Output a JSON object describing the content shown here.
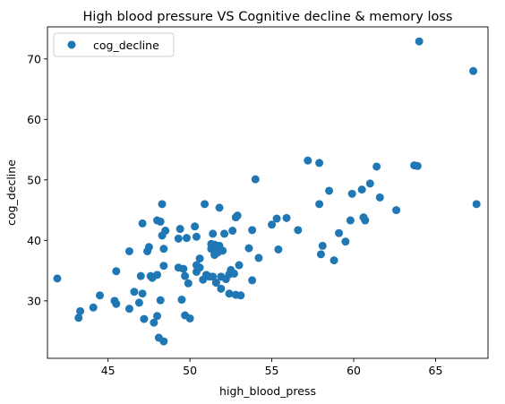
{
  "chart_data": {
    "type": "scatter",
    "title": "High blood pressure VS Cognitive decline & memory loss",
    "xlabel": "high_blood_press",
    "ylabel": "cog_decline",
    "xlim": [
      41.3,
      68.2
    ],
    "ylim": [
      20.5,
      75.3
    ],
    "xticks": [
      45,
      50,
      55,
      60,
      65
    ],
    "yticks": [
      30,
      40,
      50,
      60,
      70
    ],
    "grid": false,
    "legend": {
      "location": "upper-left",
      "entries": [
        "cog_decline"
      ]
    },
    "series": [
      {
        "name": "cog_decline",
        "color": "#1f77b4",
        "marker": "circle",
        "points": [
          [
            41.9,
            33.7
          ],
          [
            43.2,
            27.2
          ],
          [
            43.3,
            28.3
          ],
          [
            44.1,
            28.9
          ],
          [
            44.5,
            30.9
          ],
          [
            45.4,
            30.0
          ],
          [
            45.5,
            29.5
          ],
          [
            45.5,
            34.9
          ],
          [
            46.3,
            28.7
          ],
          [
            46.3,
            38.2
          ],
          [
            46.6,
            31.5
          ],
          [
            46.9,
            29.7
          ],
          [
            47.0,
            34.1
          ],
          [
            47.1,
            42.8
          ],
          [
            47.1,
            31.2
          ],
          [
            47.2,
            27.0
          ],
          [
            47.4,
            38.2
          ],
          [
            47.5,
            38.9
          ],
          [
            47.6,
            34.1
          ],
          [
            47.7,
            33.8
          ],
          [
            47.8,
            26.4
          ],
          [
            48.0,
            43.3
          ],
          [
            48.0,
            27.5
          ],
          [
            48.0,
            34.3
          ],
          [
            48.1,
            23.9
          ],
          [
            48.2,
            43.1
          ],
          [
            48.2,
            30.1
          ],
          [
            48.3,
            40.8
          ],
          [
            48.3,
            46.0
          ],
          [
            48.4,
            38.6
          ],
          [
            48.4,
            35.8
          ],
          [
            48.4,
            23.3
          ],
          [
            48.5,
            41.6
          ],
          [
            49.3,
            40.3
          ],
          [
            49.3,
            35.5
          ],
          [
            49.4,
            41.9
          ],
          [
            49.5,
            30.2
          ],
          [
            49.6,
            35.3
          ],
          [
            49.7,
            27.6
          ],
          [
            49.7,
            34.1
          ],
          [
            49.8,
            40.4
          ],
          [
            49.9,
            32.9
          ],
          [
            50.0,
            27.1
          ],
          [
            50.3,
            42.3
          ],
          [
            50.4,
            40.6
          ],
          [
            50.4,
            34.8
          ],
          [
            50.4,
            35.9
          ],
          [
            50.6,
            35.5
          ],
          [
            50.6,
            37.0
          ],
          [
            50.8,
            33.5
          ],
          [
            50.9,
            46.0
          ],
          [
            51.0,
            34.3
          ],
          [
            51.2,
            34.0
          ],
          [
            51.3,
            38.6
          ],
          [
            51.3,
            39.4
          ],
          [
            51.4,
            41.1
          ],
          [
            51.4,
            34.0
          ],
          [
            51.5,
            39.3
          ],
          [
            51.5,
            37.6
          ],
          [
            51.6,
            33.0
          ],
          [
            51.6,
            38.7
          ],
          [
            51.7,
            38.0
          ],
          [
            51.8,
            45.4
          ],
          [
            51.8,
            39.1
          ],
          [
            51.9,
            34.0
          ],
          [
            51.9,
            32.0
          ],
          [
            52.0,
            38.3
          ],
          [
            52.1,
            41.1
          ],
          [
            52.2,
            33.6
          ],
          [
            52.4,
            34.4
          ],
          [
            52.4,
            31.2
          ],
          [
            52.5,
            35.1
          ],
          [
            52.6,
            41.6
          ],
          [
            52.7,
            34.5
          ],
          [
            52.8,
            43.8
          ],
          [
            52.8,
            31.0
          ],
          [
            52.9,
            44.1
          ],
          [
            53.0,
            35.9
          ],
          [
            53.1,
            30.9
          ],
          [
            53.6,
            38.7
          ],
          [
            53.8,
            41.7
          ],
          [
            53.8,
            33.4
          ],
          [
            54.0,
            50.1
          ],
          [
            54.2,
            37.1
          ],
          [
            55.0,
            42.6
          ],
          [
            55.3,
            43.6
          ],
          [
            55.4,
            38.5
          ],
          [
            55.9,
            43.7
          ],
          [
            56.6,
            41.7
          ],
          [
            57.2,
            53.2
          ],
          [
            57.9,
            52.8
          ],
          [
            57.9,
            46.0
          ],
          [
            58.0,
            37.7
          ],
          [
            58.1,
            39.1
          ],
          [
            58.5,
            48.2
          ],
          [
            58.8,
            36.7
          ],
          [
            59.1,
            41.2
          ],
          [
            59.5,
            39.8
          ],
          [
            59.8,
            43.3
          ],
          [
            59.9,
            47.7
          ],
          [
            60.5,
            48.4
          ],
          [
            60.6,
            43.8
          ],
          [
            60.7,
            43.3
          ],
          [
            61.0,
            49.4
          ],
          [
            61.4,
            52.2
          ],
          [
            61.6,
            47.1
          ],
          [
            62.6,
            45.0
          ],
          [
            63.7,
            52.4
          ],
          [
            63.9,
            52.3
          ],
          [
            64.0,
            72.9
          ],
          [
            67.3,
            68.0
          ],
          [
            67.5,
            46.0
          ]
        ]
      }
    ]
  }
}
